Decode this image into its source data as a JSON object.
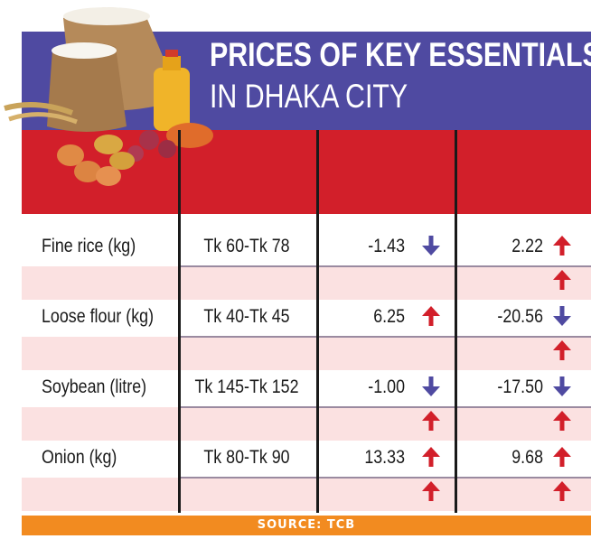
{
  "title": {
    "line1": "PRICES OF KEY ESSENTIALS",
    "line2": "IN DHAKA CITY"
  },
  "source": "SOURCE: TCB",
  "colors": {
    "title_band": "#4f4aa1",
    "header_band": "#d21f2a",
    "pink_row": "#fbe1e1",
    "source_bar": "#f28b20",
    "up_arrow": "#d21f2a",
    "down_arrow": "#4f4aa1"
  },
  "chart_data": {
    "type": "table",
    "title": "PRICES OF KEY ESSENTIALS IN DHAKA CITY",
    "columns": [
      "",
      "",
      "",
      ""
    ],
    "rows": [
      {
        "item": "Fine rice (kg)",
        "price": "Tk 60-Tk 78",
        "change1": "-1.43",
        "dir1": "down",
        "change2": "2.22",
        "dir2": "up",
        "sub_dir1": "",
        "sub_dir2": "up"
      },
      {
        "item": "Loose flour (kg)",
        "price": "Tk 40-Tk 45",
        "change1": "6.25",
        "dir1": "up",
        "change2": "-20.56",
        "dir2": "down",
        "sub_dir1": "",
        "sub_dir2": "up"
      },
      {
        "item": "Soybean (litre)",
        "price": "Tk 145-Tk 152",
        "change1": "-1.00",
        "dir1": "down",
        "change2": "-17.50",
        "dir2": "down",
        "sub_dir1": "up",
        "sub_dir2": "up"
      },
      {
        "item": "Onion (kg)",
        "price": "Tk 80-Tk 90",
        "change1": "13.33",
        "dir1": "up",
        "change2": "9.68",
        "dir2": "up",
        "sub_dir1": "up",
        "sub_dir2": "up"
      }
    ],
    "source": "SOURCE: TCB"
  }
}
